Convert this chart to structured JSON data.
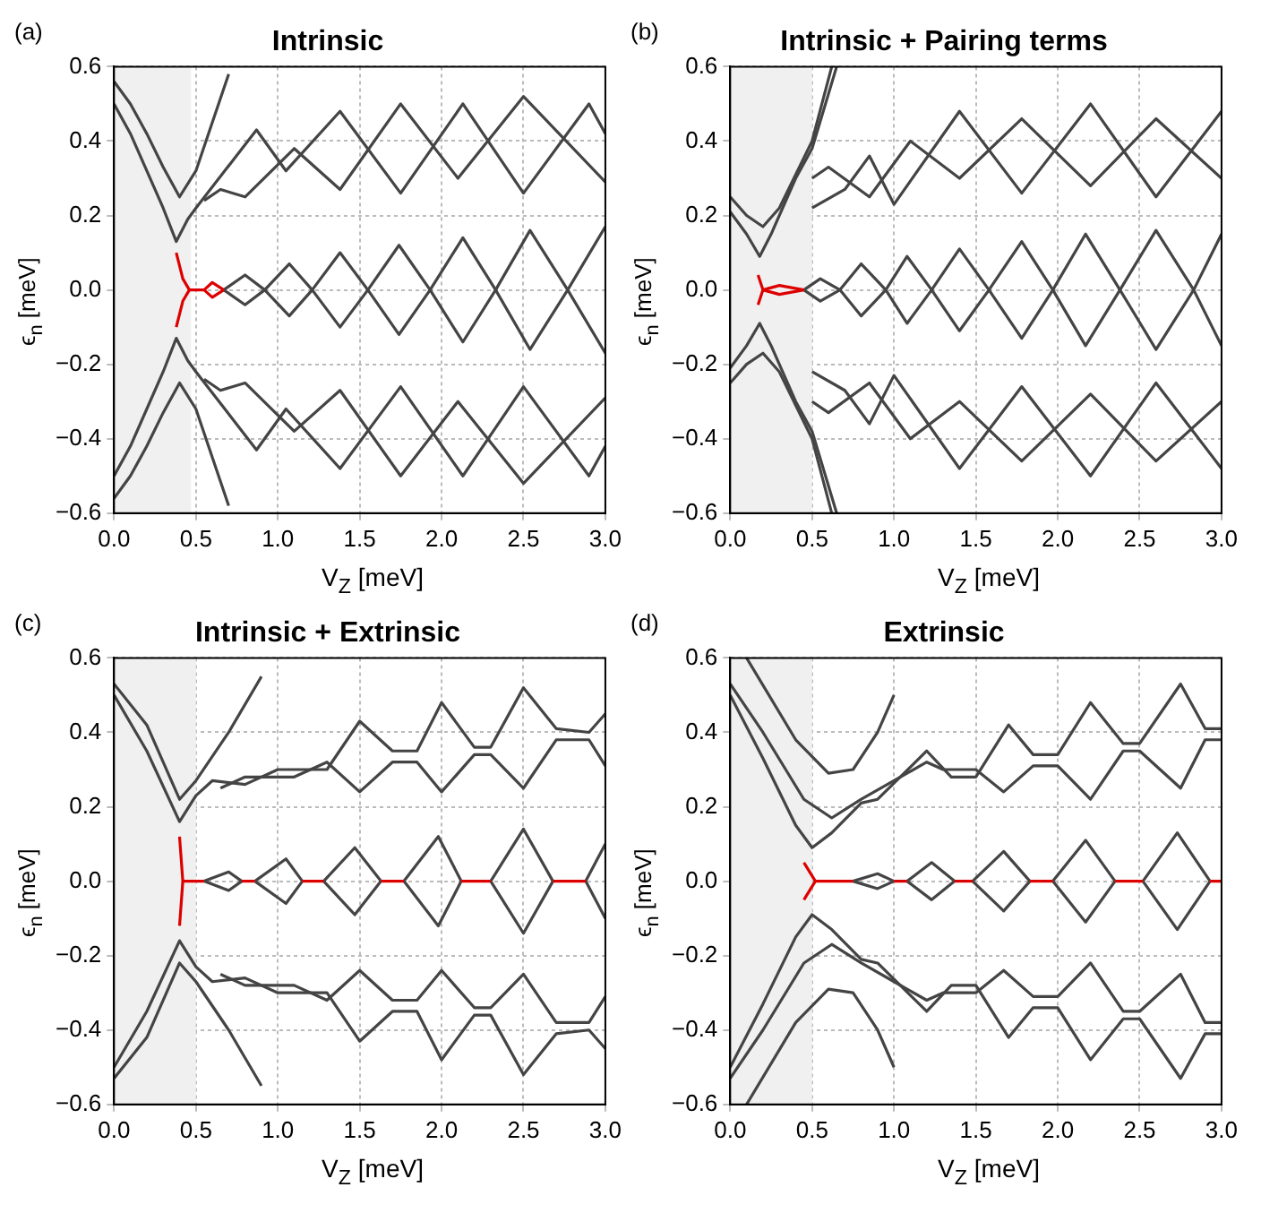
{
  "chart_data": [
    {
      "type": "line",
      "title": "Intrinsic",
      "xlabel": "V$_{Z}$ [meV]",
      "ylabel": "ϵ$_{n}$ [meV]",
      "annotations": [
        "(a)"
      ],
      "xlim": [
        0,
        3
      ],
      "ylim": [
        -0.6,
        0.6
      ],
      "xticks": [
        {
          "value": 0,
          "label": "0.0"
        },
        0.5,
        {
          "value": 1,
          "label": "1.0"
        },
        1.5,
        {
          "value": 2,
          "label": "2.0"
        },
        2.5,
        {
          "value": 3,
          "label": "3.0"
        }
      ],
      "yticks": [
        {
          "value": -0.6,
          "label": "−0.6"
        },
        {
          "value": -0.4,
          "label": "−0.4"
        },
        {
          "value": -0.2,
          "label": "−0.2"
        },
        {
          "value": 0,
          "label": "0.0"
        },
        0.2,
        0.4,
        0.6
      ],
      "grid": true,
      "bands": [
        {
          "axis": "x",
          "from": 0,
          "to": 0.47,
          "color": "#f0f0f0"
        }
      ],
      "series": [
        {
          "color": "#dd0000",
          "x": [
            0.38,
            0.42,
            0.46,
            0.55,
            0.6,
            0.67
          ],
          "values": [
            0.1,
            0.03,
            0,
            0,
            0.02,
            0
          ]
        },
        {
          "color": "#dd0000",
          "x": [
            0.38,
            0.42,
            0.46
          ],
          "values": [
            -0.1,
            -0.03,
            0
          ]
        },
        {
          "color": "#dd0000",
          "x": [
            0.55,
            0.6,
            0.67
          ],
          "values": [
            0,
            -0.02,
            0
          ]
        },
        {
          "color": "#444444",
          "x": [
            0.67,
            0.8,
            0.92,
            1.07,
            1.21,
            1.38,
            1.55,
            1.74,
            1.93,
            2.13,
            2.33,
            2.54,
            2.77,
            3.0
          ],
          "values": [
            0,
            -0.04,
            0,
            0.07,
            0,
            -0.1,
            0,
            0.12,
            0,
            -0.14,
            0,
            0.16,
            0,
            -0.17
          ]
        },
        {
          "color": "#444444",
          "x": [
            0.67,
            0.8,
            0.92,
            1.07,
            1.21,
            1.38,
            1.55,
            1.74,
            1.93,
            2.13,
            2.33,
            2.54,
            2.77,
            3.0
          ],
          "values": [
            0,
            0.04,
            0,
            -0.07,
            0,
            0.1,
            0,
            -0.12,
            0,
            0.14,
            0,
            -0.16,
            0,
            0.17
          ]
        },
        {
          "color": "#444444",
          "x": [
            0,
            0.1,
            0.2,
            0.3,
            0.38,
            0.45,
            0.5,
            0.87,
            1.05,
            1.38,
            1.75,
            2.13,
            2.5,
            2.9,
            3.0
          ],
          "values": [
            0.5,
            0.42,
            0.32,
            0.22,
            0.13,
            0.19,
            0.22,
            0.43,
            0.32,
            0.48,
            0.26,
            0.5,
            0.26,
            0.5,
            0.42
          ]
        },
        {
          "color": "#444444",
          "x": [
            0,
            0.1,
            0.2,
            0.3,
            0.38,
            0.45,
            0.5,
            0.87,
            1.05,
            1.38,
            1.75,
            2.13,
            2.5,
            2.9,
            3.0
          ],
          "values": [
            -0.5,
            -0.42,
            -0.32,
            -0.22,
            -0.13,
            -0.19,
            -0.22,
            -0.43,
            -0.32,
            -0.48,
            -0.26,
            -0.5,
            -0.26,
            -0.5,
            -0.42
          ]
        },
        {
          "color": "#444444",
          "x": [
            0,
            0.1,
            0.2,
            0.3,
            0.4,
            0.5,
            0.6,
            0.7
          ],
          "values": [
            0.56,
            0.5,
            0.42,
            0.33,
            0.25,
            0.32,
            0.45,
            0.58
          ]
        },
        {
          "color": "#444444",
          "x": [
            0,
            0.1,
            0.2,
            0.3,
            0.4,
            0.5,
            0.6,
            0.7
          ],
          "values": [
            -0.56,
            -0.5,
            -0.42,
            -0.33,
            -0.25,
            -0.32,
            -0.45,
            -0.58
          ]
        },
        {
          "color": "#444444",
          "x": [
            0.55,
            0.65,
            0.8,
            1.1,
            1.38,
            1.75,
            2.1,
            2.5,
            3.0
          ],
          "values": [
            0.24,
            0.27,
            0.25,
            0.38,
            0.27,
            0.5,
            0.3,
            0.52,
            0.29
          ]
        },
        {
          "color": "#444444",
          "x": [
            0.55,
            0.65,
            0.8,
            1.1,
            1.38,
            1.75,
            2.1,
            2.5,
            3.0
          ],
          "values": [
            -0.24,
            -0.27,
            -0.25,
            -0.38,
            -0.27,
            -0.5,
            -0.3,
            -0.52,
            -0.29
          ]
        }
      ]
    },
    {
      "type": "line",
      "title": "Intrinsic + Pairing terms",
      "xlabel": "V$_{Z}$ [meV]",
      "ylabel": "ϵ$_{n}$ [meV]",
      "annotations": [
        "(b)"
      ],
      "xlim": [
        0,
        3
      ],
      "ylim": [
        -0.6,
        0.6
      ],
      "xticks": [
        {
          "value": 0,
          "label": "0.0"
        },
        0.5,
        {
          "value": 1,
          "label": "1.0"
        },
        1.5,
        {
          "value": 2,
          "label": "2.0"
        },
        2.5,
        {
          "value": 3,
          "label": "3.0"
        }
      ],
      "yticks": [
        {
          "value": -0.6,
          "label": "−0.6"
        },
        {
          "value": -0.4,
          "label": "−0.4"
        },
        {
          "value": -0.2,
          "label": "−0.2"
        },
        {
          "value": 0,
          "label": "0.0"
        },
        0.2,
        0.4,
        0.6
      ],
      "grid": true,
      "bands": [
        {
          "axis": "x",
          "from": 0,
          "to": 0.5,
          "color": "#f0f0f0"
        }
      ],
      "series": [
        {
          "color": "#dd0000",
          "x": [
            0.17,
            0.2,
            0.3,
            0.45
          ],
          "values": [
            0.04,
            0,
            0.012,
            0
          ]
        },
        {
          "color": "#dd0000",
          "x": [
            0.17,
            0.2,
            0.3,
            0.45
          ],
          "values": [
            -0.04,
            0,
            -0.012,
            0
          ]
        },
        {
          "color": "#444444",
          "x": [
            0.45,
            0.55,
            0.67,
            0.8,
            0.95,
            1.08,
            1.23,
            1.4,
            1.58,
            1.78,
            1.97,
            2.17,
            2.38,
            2.6,
            2.83,
            3.0
          ],
          "values": [
            0,
            0.03,
            0,
            -0.07,
            0,
            0.09,
            0,
            -0.11,
            0,
            0.13,
            0,
            -0.15,
            0,
            0.16,
            0,
            -0.15
          ]
        },
        {
          "color": "#444444",
          "x": [
            0.45,
            0.55,
            0.67,
            0.8,
            0.95,
            1.08,
            1.23,
            1.4,
            1.58,
            1.78,
            1.97,
            2.17,
            2.38,
            2.6,
            2.83,
            3.0
          ],
          "values": [
            0,
            -0.03,
            0,
            0.07,
            0,
            -0.09,
            0,
            0.11,
            0,
            -0.13,
            0,
            0.15,
            0,
            -0.16,
            0,
            0.15
          ]
        },
        {
          "color": "#444444",
          "x": [
            0,
            0.1,
            0.18,
            0.25,
            0.4,
            0.5,
            0.65
          ],
          "values": [
            0.21,
            0.15,
            0.09,
            0.15,
            0.3,
            0.38,
            0.6
          ]
        },
        {
          "color": "#444444",
          "x": [
            0,
            0.1,
            0.18,
            0.25,
            0.4,
            0.5,
            0.65
          ],
          "values": [
            -0.21,
            -0.15,
            -0.09,
            -0.15,
            -0.3,
            -0.38,
            -0.6
          ]
        },
        {
          "color": "#444444",
          "x": [
            0,
            0.1,
            0.2,
            0.3,
            0.5,
            0.62
          ],
          "values": [
            0.25,
            0.2,
            0.17,
            0.22,
            0.4,
            0.6
          ]
        },
        {
          "color": "#444444",
          "x": [
            0,
            0.1,
            0.2,
            0.3,
            0.5,
            0.62
          ],
          "values": [
            -0.25,
            -0.2,
            -0.17,
            -0.22,
            -0.4,
            -0.6
          ]
        },
        {
          "color": "#444444",
          "x": [
            0.5,
            0.7,
            0.85,
            1.0,
            1.4,
            1.78,
            2.2,
            2.6,
            3.0
          ],
          "values": [
            0.22,
            0.27,
            0.36,
            0.23,
            0.48,
            0.26,
            0.5,
            0.25,
            0.48
          ]
        },
        {
          "color": "#444444",
          "x": [
            0.5,
            0.7,
            0.85,
            1.0,
            1.4,
            1.78,
            2.2,
            2.6,
            3.0
          ],
          "values": [
            -0.22,
            -0.27,
            -0.36,
            -0.23,
            -0.48,
            -0.26,
            -0.5,
            -0.25,
            -0.48
          ]
        },
        {
          "color": "#444444",
          "x": [
            0.5,
            0.6,
            0.85,
            1.1,
            1.4,
            1.78,
            2.2,
            2.6,
            3.0
          ],
          "values": [
            0.3,
            0.33,
            0.25,
            0.4,
            0.3,
            0.46,
            0.28,
            0.46,
            0.3
          ]
        },
        {
          "color": "#444444",
          "x": [
            0.5,
            0.6,
            0.85,
            1.1,
            1.4,
            1.78,
            2.2,
            2.6,
            3.0
          ],
          "values": [
            -0.3,
            -0.33,
            -0.25,
            -0.4,
            -0.3,
            -0.46,
            -0.28,
            -0.46,
            -0.3
          ]
        }
      ]
    },
    {
      "type": "line",
      "title": "Intrinsic + Extrinsic",
      "xlabel": "V$_{Z}$ [meV]",
      "ylabel": "ϵ$_{n}$ [meV]",
      "annotations": [
        "(c)"
      ],
      "xlim": [
        0,
        3
      ],
      "ylim": [
        -0.6,
        0.6
      ],
      "xticks": [
        {
          "value": 0,
          "label": "0.0"
        },
        0.5,
        {
          "value": 1,
          "label": "1.0"
        },
        1.5,
        {
          "value": 2,
          "label": "2.0"
        },
        2.5,
        {
          "value": 3,
          "label": "3.0"
        }
      ],
      "yticks": [
        {
          "value": -0.6,
          "label": "−0.6"
        },
        {
          "value": -0.4,
          "label": "−0.4"
        },
        {
          "value": -0.2,
          "label": "−0.2"
        },
        {
          "value": 0,
          "label": "0.0"
        },
        0.2,
        0.4,
        0.6
      ],
      "grid": true,
      "bands": [
        {
          "axis": "x",
          "from": 0,
          "to": 0.5,
          "color": "#f0f0f0"
        }
      ],
      "series": [
        {
          "color": "#dd0000",
          "x": [
            0.4,
            0.42,
            0.55
          ],
          "values": [
            0.12,
            0,
            0
          ]
        },
        {
          "color": "#dd0000",
          "x": [
            0.4,
            0.42
          ],
          "values": [
            -0.12,
            0
          ]
        },
        {
          "color": "#dd0000",
          "x": [
            0.78,
            0.86
          ],
          "values": [
            0,
            0
          ]
        },
        {
          "color": "#dd0000",
          "x": [
            1.15,
            1.28
          ],
          "values": [
            0,
            0
          ]
        },
        {
          "color": "#dd0000",
          "x": [
            1.63,
            1.77
          ],
          "values": [
            0,
            0
          ]
        },
        {
          "color": "#dd0000",
          "x": [
            2.12,
            2.3
          ],
          "values": [
            0,
            0
          ]
        },
        {
          "color": "#dd0000",
          "x": [
            2.68,
            2.88
          ],
          "values": [
            0,
            0
          ]
        },
        {
          "color": "#444444",
          "x": [
            0.55,
            0.7,
            0.78
          ],
          "values": [
            0,
            0.025,
            0
          ]
        },
        {
          "color": "#444444",
          "x": [
            0.55,
            0.7,
            0.78
          ],
          "values": [
            0,
            -0.025,
            0
          ]
        },
        {
          "color": "#444444",
          "x": [
            0.86,
            1.05,
            1.15
          ],
          "values": [
            0,
            0.06,
            0
          ]
        },
        {
          "color": "#444444",
          "x": [
            0.86,
            1.05,
            1.15
          ],
          "values": [
            0,
            -0.06,
            0
          ]
        },
        {
          "color": "#444444",
          "x": [
            1.28,
            1.47,
            1.63
          ],
          "values": [
            0,
            0.09,
            0
          ]
        },
        {
          "color": "#444444",
          "x": [
            1.28,
            1.47,
            1.63
          ],
          "values": [
            0,
            -0.09,
            0
          ]
        },
        {
          "color": "#444444",
          "x": [
            1.77,
            1.98,
            2.12
          ],
          "values": [
            0,
            0.12,
            0
          ]
        },
        {
          "color": "#444444",
          "x": [
            1.77,
            1.98,
            2.12
          ],
          "values": [
            0,
            -0.12,
            0
          ]
        },
        {
          "color": "#444444",
          "x": [
            2.3,
            2.5,
            2.68
          ],
          "values": [
            0,
            0.14,
            0
          ]
        },
        {
          "color": "#444444",
          "x": [
            2.3,
            2.5,
            2.68
          ],
          "values": [
            0,
            -0.14,
            0
          ]
        },
        {
          "color": "#444444",
          "x": [
            2.88,
            3.0
          ],
          "values": [
            0,
            0.1
          ]
        },
        {
          "color": "#444444",
          "x": [
            2.88,
            3.0
          ],
          "values": [
            0,
            -0.1
          ]
        },
        {
          "color": "#444444",
          "x": [
            0,
            0.2,
            0.4,
            0.5,
            0.6,
            0.8,
            1.0,
            1.3,
            1.5,
            1.7,
            1.85,
            2.0,
            2.2,
            2.3,
            2.5,
            2.7,
            2.9,
            3.0
          ],
          "values": [
            0.5,
            0.35,
            0.16,
            0.23,
            0.27,
            0.26,
            0.3,
            0.3,
            0.43,
            0.35,
            0.35,
            0.48,
            0.36,
            0.36,
            0.52,
            0.41,
            0.4,
            0.45
          ]
        },
        {
          "color": "#444444",
          "x": [
            0,
            0.2,
            0.4,
            0.5,
            0.6,
            0.8,
            1.0,
            1.3,
            1.5,
            1.7,
            1.85,
            2.0,
            2.2,
            2.3,
            2.5,
            2.7,
            2.9,
            3.0
          ],
          "values": [
            -0.5,
            -0.35,
            -0.16,
            -0.23,
            -0.27,
            -0.26,
            -0.3,
            -0.3,
            -0.43,
            -0.35,
            -0.35,
            -0.48,
            -0.36,
            -0.36,
            -0.52,
            -0.41,
            -0.4,
            -0.45
          ]
        },
        {
          "color": "#444444",
          "x": [
            0,
            0.2,
            0.4,
            0.5,
            0.7,
            0.9
          ],
          "values": [
            0.53,
            0.42,
            0.22,
            0.27,
            0.4,
            0.55
          ]
        },
        {
          "color": "#444444",
          "x": [
            0,
            0.2,
            0.4,
            0.5,
            0.7,
            0.9
          ],
          "values": [
            -0.53,
            -0.42,
            -0.22,
            -0.27,
            -0.4,
            -0.55
          ]
        },
        {
          "color": "#444444",
          "x": [
            0.65,
            0.8,
            1.1,
            1.3,
            1.5,
            1.7,
            1.85,
            2.0,
            2.2,
            2.3,
            2.5,
            2.7,
            2.9,
            3.0
          ],
          "values": [
            0.25,
            0.28,
            0.28,
            0.32,
            0.24,
            0.32,
            0.32,
            0.24,
            0.34,
            0.34,
            0.25,
            0.38,
            0.38,
            0.31
          ]
        },
        {
          "color": "#444444",
          "x": [
            0.65,
            0.8,
            1.1,
            1.3,
            1.5,
            1.7,
            1.85,
            2.0,
            2.2,
            2.3,
            2.5,
            2.7,
            2.9,
            3.0
          ],
          "values": [
            -0.25,
            -0.28,
            -0.28,
            -0.32,
            -0.24,
            -0.32,
            -0.32,
            -0.24,
            -0.34,
            -0.34,
            -0.25,
            -0.38,
            -0.38,
            -0.31
          ]
        }
      ]
    },
    {
      "type": "line",
      "title": "Extrinsic",
      "xlabel": "V$_{Z}$ [meV]",
      "ylabel": "ϵ$_{n}$ [meV]",
      "annotations": [
        "(d)"
      ],
      "xlim": [
        0,
        3
      ],
      "ylim": [
        -0.6,
        0.6
      ],
      "xticks": [
        {
          "value": 0,
          "label": "0.0"
        },
        0.5,
        {
          "value": 1,
          "label": "1.0"
        },
        1.5,
        {
          "value": 2,
          "label": "2.0"
        },
        2.5,
        {
          "value": 3,
          "label": "3.0"
        }
      ],
      "yticks": [
        {
          "value": -0.6,
          "label": "−0.6"
        },
        {
          "value": -0.4,
          "label": "−0.4"
        },
        {
          "value": -0.2,
          "label": "−0.2"
        },
        {
          "value": 0,
          "label": "0.0"
        },
        0.2,
        0.4,
        0.6
      ],
      "grid": true,
      "bands": [
        {
          "axis": "x",
          "from": 0,
          "to": 0.5,
          "color": "#f0f0f0"
        }
      ],
      "series": [
        {
          "color": "#dd0000",
          "x": [
            0.45,
            0.52,
            0.75
          ],
          "values": [
            0.05,
            0,
            0
          ]
        },
        {
          "color": "#dd0000",
          "x": [
            0.45,
            0.52
          ],
          "values": [
            -0.05,
            0
          ]
        },
        {
          "color": "#dd0000",
          "x": [
            1.0,
            1.08
          ],
          "values": [
            0,
            0
          ]
        },
        {
          "color": "#dd0000",
          "x": [
            1.37,
            1.48
          ],
          "values": [
            0,
            0
          ]
        },
        {
          "color": "#dd0000",
          "x": [
            1.83,
            1.97
          ],
          "values": [
            0,
            0
          ]
        },
        {
          "color": "#dd0000",
          "x": [
            2.35,
            2.52
          ],
          "values": [
            0,
            0
          ]
        },
        {
          "color": "#dd0000",
          "x": [
            2.93,
            3.0
          ],
          "values": [
            0,
            0
          ]
        },
        {
          "color": "#444444",
          "x": [
            0.75,
            0.9,
            1.0
          ],
          "values": [
            0,
            0.02,
            0
          ]
        },
        {
          "color": "#444444",
          "x": [
            0.75,
            0.9,
            1.0
          ],
          "values": [
            0,
            -0.02,
            0
          ]
        },
        {
          "color": "#444444",
          "x": [
            1.08,
            1.23,
            1.37
          ],
          "values": [
            0,
            0.05,
            0
          ]
        },
        {
          "color": "#444444",
          "x": [
            1.08,
            1.23,
            1.37
          ],
          "values": [
            0,
            -0.05,
            0
          ]
        },
        {
          "color": "#444444",
          "x": [
            1.48,
            1.67,
            1.83
          ],
          "values": [
            0,
            0.08,
            0
          ]
        },
        {
          "color": "#444444",
          "x": [
            1.48,
            1.67,
            1.83
          ],
          "values": [
            0,
            -0.08,
            0
          ]
        },
        {
          "color": "#444444",
          "x": [
            1.97,
            2.17,
            2.35
          ],
          "values": [
            0,
            0.11,
            0
          ]
        },
        {
          "color": "#444444",
          "x": [
            1.97,
            2.17,
            2.35
          ],
          "values": [
            0,
            -0.11,
            0
          ]
        },
        {
          "color": "#444444",
          "x": [
            2.52,
            2.73,
            2.93
          ],
          "values": [
            0,
            0.13,
            0
          ]
        },
        {
          "color": "#444444",
          "x": [
            2.52,
            2.73,
            2.93
          ],
          "values": [
            0,
            -0.13,
            0
          ]
        },
        {
          "color": "#444444",
          "x": [
            0,
            0.2,
            0.4,
            0.5,
            0.62,
            0.8,
            0.9,
            1.2,
            1.35,
            1.5,
            1.7,
            1.85,
            2.0,
            2.2,
            2.4,
            2.5,
            2.75,
            2.9,
            3.0
          ],
          "values": [
            0.5,
            0.33,
            0.15,
            0.09,
            0.13,
            0.21,
            0.22,
            0.35,
            0.28,
            0.28,
            0.42,
            0.34,
            0.34,
            0.48,
            0.37,
            0.37,
            0.53,
            0.41,
            0.41
          ]
        },
        {
          "color": "#444444",
          "x": [
            0,
            0.2,
            0.4,
            0.5,
            0.62,
            0.8,
            0.9,
            1.2,
            1.35,
            1.5,
            1.7,
            1.85,
            2.0,
            2.2,
            2.4,
            2.5,
            2.75,
            2.9,
            3.0
          ],
          "values": [
            -0.5,
            -0.33,
            -0.15,
            -0.09,
            -0.13,
            -0.21,
            -0.22,
            -0.35,
            -0.28,
            -0.28,
            -0.42,
            -0.34,
            -0.34,
            -0.48,
            -0.37,
            -0.37,
            -0.53,
            -0.41,
            -0.41
          ]
        },
        {
          "color": "#444444",
          "x": [
            0,
            0.2,
            0.45,
            0.62,
            0.8,
            1.0,
            1.2,
            1.3,
            1.5,
            1.67,
            1.85,
            2.0,
            2.2,
            2.4,
            2.5,
            2.75,
            2.9,
            3.0
          ],
          "values": [
            0.53,
            0.4,
            0.22,
            0.17,
            0.22,
            0.27,
            0.32,
            0.3,
            0.3,
            0.24,
            0.31,
            0.31,
            0.22,
            0.35,
            0.35,
            0.25,
            0.38,
            0.38
          ]
        },
        {
          "color": "#444444",
          "x": [
            0,
            0.2,
            0.45,
            0.62,
            0.8,
            1.0,
            1.2,
            1.3,
            1.5,
            1.67,
            1.85,
            2.0,
            2.2,
            2.4,
            2.5,
            2.75,
            2.9,
            3.0
          ],
          "values": [
            -0.53,
            -0.4,
            -0.22,
            -0.17,
            -0.22,
            -0.27,
            -0.32,
            -0.3,
            -0.3,
            -0.24,
            -0.31,
            -0.31,
            -0.22,
            -0.35,
            -0.35,
            -0.25,
            -0.38,
            -0.38
          ]
        },
        {
          "color": "#444444",
          "x": [
            0.1,
            0.4,
            0.6,
            0.75,
            0.9,
            1.0
          ],
          "values": [
            0.6,
            0.38,
            0.29,
            0.3,
            0.4,
            0.5
          ]
        },
        {
          "color": "#444444",
          "x": [
            0.1,
            0.4,
            0.6,
            0.75,
            0.9,
            1.0
          ],
          "values": [
            -0.6,
            -0.38,
            -0.29,
            -0.3,
            -0.4,
            -0.5
          ]
        }
      ]
    }
  ]
}
